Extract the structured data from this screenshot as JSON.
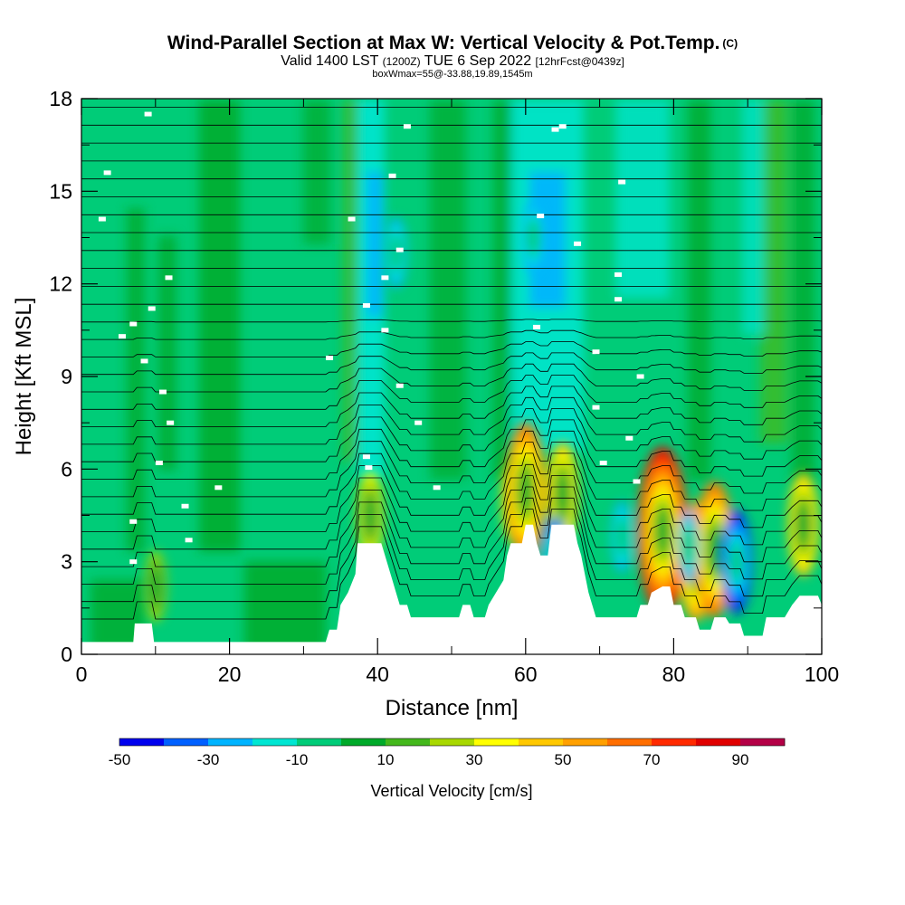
{
  "title": {
    "main": "Wind-Parallel Section at Max W: Vertical Velocity & Pot.Temp.",
    "copyright": "(C)",
    "valid_prefix": "Valid 1400 LST",
    "valid_zulu": "(1200Z)",
    "valid_date": "TUE 6 Sep 2022",
    "forecast": "[12hrFcst@0439z]",
    "box_info": "boxWmax=55@-33.88,19.89,1545m"
  },
  "chart_data": {
    "type": "heatmap",
    "xlabel": "Distance [nm]",
    "ylabel": "Height [Kft MSL]",
    "xlim": [
      0,
      100
    ],
    "ylim": [
      0,
      18
    ],
    "x_ticks": [
      "0",
      "20",
      "40",
      "60",
      "80",
      "100"
    ],
    "y_ticks": [
      "0",
      "3",
      "6",
      "9",
      "12",
      "15",
      "18"
    ],
    "colorbar": {
      "title": "Vertical Velocity [cm/s]",
      "labels": [
        "-50",
        "-30",
        "-10",
        "10",
        "30",
        "50",
        "70",
        "90"
      ],
      "bounds": [
        -50,
        -40,
        -30,
        -20,
        -10,
        0,
        10,
        20,
        30,
        40,
        50,
        60,
        70,
        80,
        90,
        100
      ],
      "colors": [
        "#0000ee",
        "#0060ff",
        "#00b4ff",
        "#00e6d2",
        "#00cc78",
        "#00aa2a",
        "#44b81c",
        "#a8d800",
        "#ffff00",
        "#ffc800",
        "#ffa000",
        "#ff6e00",
        "#ff2a00",
        "#e00000",
        "#b40046"
      ]
    },
    "terrain_kft": [
      [
        0,
        0.4
      ],
      [
        7,
        0.4
      ],
      [
        7.2,
        1
      ],
      [
        9.5,
        1
      ],
      [
        9.8,
        0.4
      ],
      [
        33,
        0.4
      ],
      [
        33.5,
        0.8
      ],
      [
        34.5,
        0.8
      ],
      [
        35,
        1.6
      ],
      [
        36,
        2
      ],
      [
        37,
        2.6
      ],
      [
        37.3,
        3.6
      ],
      [
        40.5,
        3.6
      ],
      [
        41,
        3.2
      ],
      [
        41.5,
        2.8
      ],
      [
        42,
        2.4
      ],
      [
        42.5,
        2
      ],
      [
        43,
        1.6
      ],
      [
        44,
        1.6
      ],
      [
        44.5,
        1.2
      ],
      [
        51,
        1.2
      ],
      [
        51.5,
        1.6
      ],
      [
        52.5,
        1.6
      ],
      [
        53,
        1.2
      ],
      [
        54.5,
        1.2
      ],
      [
        55,
        1.6
      ],
      [
        56,
        2
      ],
      [
        57,
        2.4
      ],
      [
        57.5,
        3.2
      ],
      [
        58,
        3.6
      ],
      [
        59.5,
        3.6
      ],
      [
        60,
        4.2
      ],
      [
        61,
        4.2
      ],
      [
        61.5,
        3.6
      ],
      [
        62,
        3.2
      ],
      [
        63,
        3.2
      ],
      [
        63.5,
        4.2
      ],
      [
        66.5,
        4.2
      ],
      [
        67,
        3.6
      ],
      [
        67.5,
        3.2
      ],
      [
        68,
        2.6
      ],
      [
        68.5,
        2
      ],
      [
        69,
        1.6
      ],
      [
        69.5,
        1.2
      ],
      [
        75,
        1.2
      ],
      [
        75.5,
        1.6
      ],
      [
        76.5,
        1.6
      ],
      [
        77,
        2
      ],
      [
        78.5,
        2.2
      ],
      [
        79.5,
        2.2
      ],
      [
        80,
        1.6
      ],
      [
        81,
        1.6
      ],
      [
        81.5,
        1.2
      ],
      [
        83,
        1.2
      ],
      [
        83.5,
        0.8
      ],
      [
        85,
        0.8
      ],
      [
        85.5,
        1.2
      ],
      [
        87,
        1.2
      ],
      [
        87.5,
        1
      ],
      [
        89,
        1
      ],
      [
        89.5,
        0.6
      ],
      [
        92,
        0.6
      ],
      [
        92.5,
        1.2
      ],
      [
        95,
        1.2
      ],
      [
        96,
        1.6
      ],
      [
        97,
        1.9
      ],
      [
        99.5,
        1.9
      ],
      [
        100,
        1.6
      ]
    ],
    "vertical_velocity_cells": [
      {
        "x": 10,
        "z": 2.2,
        "value": 30
      },
      {
        "x": 39,
        "z": 4.5,
        "value": 40
      },
      {
        "x": 58.5,
        "z": 5,
        "value": 40
      },
      {
        "x": 60,
        "z": 5.3,
        "value": 70
      },
      {
        "x": 65,
        "z": 5.2,
        "value": 50
      },
      {
        "x": 78.5,
        "z": 4,
        "value": 90
      },
      {
        "x": 83,
        "z": 3,
        "value": 60
      },
      {
        "x": 85.5,
        "z": 3.4,
        "value": 70
      },
      {
        "x": 97.5,
        "z": 4.2,
        "value": 50
      },
      {
        "x": 64,
        "z": 3,
        "value": -40
      },
      {
        "x": 88.5,
        "z": 3,
        "value": -50
      },
      {
        "x": 82,
        "z": 3.5,
        "value": -30
      },
      {
        "x": 42.5,
        "z": 13,
        "value": -30
      },
      {
        "x": 61,
        "z": 13.5,
        "value": -30
      },
      {
        "x": 73,
        "z": 3.8,
        "value": -30
      }
    ],
    "theta_label_samples": [
      "44",
      "36",
      "34",
      "30",
      "28",
      "26",
      "24",
      "22",
      "20",
      "19",
      "18"
    ]
  }
}
